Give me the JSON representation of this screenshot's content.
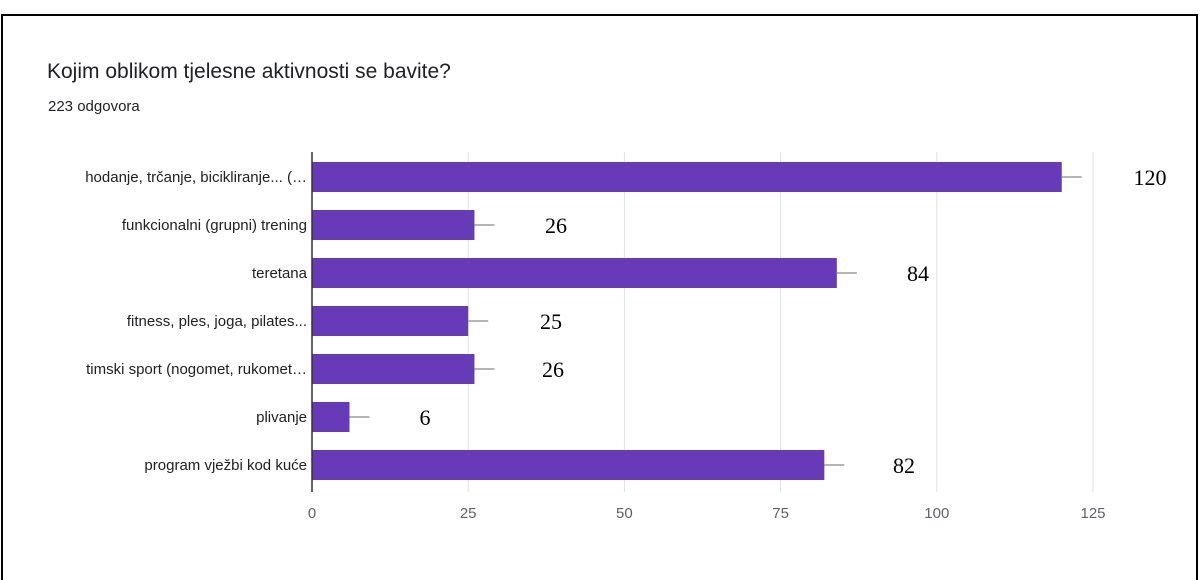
{
  "title": "Kojim oblikom tjelesne aktivnosti se bavite?",
  "subtitle": "223 odgovora",
  "chart_data": {
    "type": "bar",
    "orientation": "horizontal",
    "categories": [
      "hodanje, trčanje, bicikliranje... (…",
      "funkcionalni (grupni) trening",
      "teretana",
      "fitness, ples, joga, pilates...",
      "timski sport (nogomet, rukomet…",
      "plivanje",
      "program vježbi kod kuće"
    ],
    "values": [
      120,
      26,
      84,
      25,
      26,
      6,
      82
    ],
    "data_labels": [
      "120",
      "26",
      "84",
      "25",
      "26",
      "6",
      "82"
    ],
    "x_ticks": [
      "0",
      "25",
      "50",
      "75",
      "100",
      "125"
    ],
    "xlim": [
      0,
      125
    ],
    "grid": true,
    "bar_color": "#673ab7",
    "error_bar_color": "#9e9e9e",
    "grid_color": "#e0e0e0"
  }
}
